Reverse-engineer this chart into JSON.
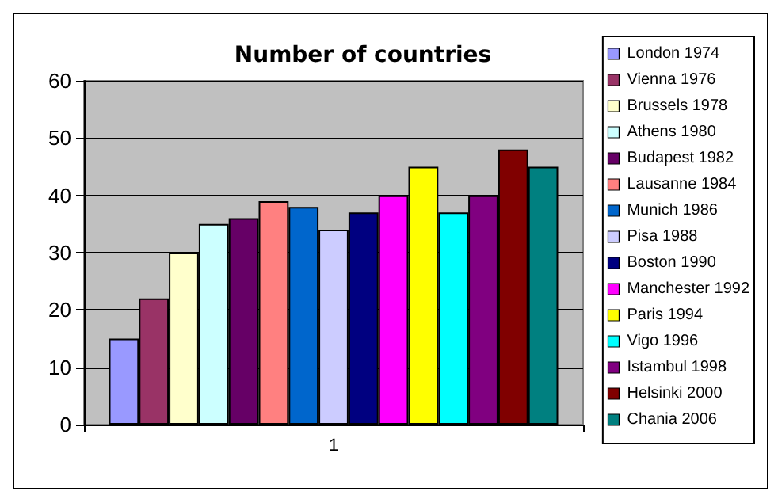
{
  "chart_data": {
    "type": "bar",
    "title": "Number of countries",
    "categories": [
      "1"
    ],
    "series": [
      {
        "name": "London 1974",
        "color": "#9999ff",
        "values": [
          15
        ]
      },
      {
        "name": "Vienna 1976",
        "color": "#993366",
        "values": [
          22
        ]
      },
      {
        "name": "Brussels 1978",
        "color": "#ffffcc",
        "values": [
          30
        ]
      },
      {
        "name": "Athens 1980",
        "color": "#ccffff",
        "values": [
          35
        ]
      },
      {
        "name": "Budapest 1982",
        "color": "#660066",
        "values": [
          36
        ]
      },
      {
        "name": "Lausanne 1984",
        "color": "#ff8080",
        "values": [
          39
        ]
      },
      {
        "name": "Munich 1986",
        "color": "#0066cc",
        "values": [
          38
        ]
      },
      {
        "name": "Pisa 1988",
        "color": "#ccccff",
        "values": [
          34
        ]
      },
      {
        "name": "Boston 1990",
        "color": "#000080",
        "values": [
          37
        ]
      },
      {
        "name": "Manchester 1992",
        "color": "#ff00ff",
        "values": [
          40
        ]
      },
      {
        "name": "Paris 1994",
        "color": "#ffff00",
        "values": [
          45
        ]
      },
      {
        "name": "Vigo 1996",
        "color": "#00ffff",
        "values": [
          37
        ]
      },
      {
        "name": "Istambul 1998",
        "color": "#800080",
        "values": [
          40
        ]
      },
      {
        "name": "Helsinki 2000",
        "color": "#800000",
        "values": [
          48
        ]
      },
      {
        "name": "Chania 2006",
        "color": "#008080",
        "values": [
          45
        ]
      }
    ],
    "ylim": [
      0,
      60
    ],
    "yticks": [
      0,
      10,
      20,
      30,
      40,
      50,
      60
    ],
    "grid": "y",
    "legend": "right"
  }
}
